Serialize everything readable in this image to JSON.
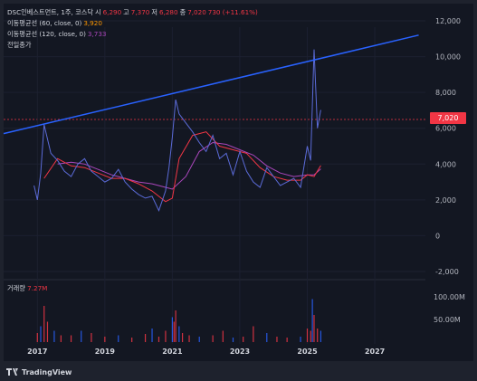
{
  "legend": {
    "title": "DSC인베스트먼트, 1주, 코스닥",
    "o_label": "시",
    "o_val": "6,290",
    "h_label": "고",
    "h_val": "7,370",
    "l_label": "저",
    "l_val": "6,280",
    "c_label": "종",
    "c_val": "7,020",
    "change": "730 (+11.61%)",
    "ma60_label": "이동평균선 (60, close, 0)",
    "ma60_val": "3,920",
    "ma120_label": "이동평균선 (120, close, 0)",
    "ma120_val": "3,733",
    "prev_close": "전일종가"
  },
  "volume": {
    "label": "거래량",
    "value": "7.27M"
  },
  "price_badge": "7,020",
  "footer": {
    "brand": "TradingView"
  },
  "colors": {
    "up": "#f23645",
    "down": "#2962ff",
    "ma60": "#f23645",
    "ma120": "#ab47bc",
    "trendline": "#2962ff"
  },
  "chart_data": {
    "type": "line",
    "y_ticks": [
      "12,000",
      "10,000",
      "8,000",
      "6,000",
      "4,000",
      "2,000",
      "0",
      "-2,000"
    ],
    "x_ticks": [
      "2017",
      "2019",
      "2021",
      "2023",
      "2025",
      "2027"
    ],
    "vol_ticks": [
      "100.00M",
      "50.00M"
    ],
    "ylim": [
      -2000,
      12000
    ],
    "last_price": 7020,
    "trendline": {
      "x": [
        2016.0,
        2028.3
      ],
      "y": [
        5700,
        11200
      ]
    },
    "price": {
      "x": [
        2016.9,
        2017.0,
        2017.1,
        2017.2,
        2017.4,
        2017.6,
        2017.8,
        2018.0,
        2018.2,
        2018.4,
        2018.6,
        2018.8,
        2019.0,
        2019.2,
        2019.4,
        2019.6,
        2019.8,
        2020.0,
        2020.2,
        2020.4,
        2020.6,
        2020.8,
        2020.9,
        2021.0,
        2021.1,
        2021.2,
        2021.4,
        2021.6,
        2021.8,
        2022.0,
        2022.2,
        2022.4,
        2022.6,
        2022.8,
        2023.0,
        2023.2,
        2023.4,
        2023.6,
        2023.8,
        2024.0,
        2024.2,
        2024.4,
        2024.6,
        2024.8,
        2025.0,
        2025.1,
        2025.15,
        2025.2,
        2025.3,
        2025.4
      ],
      "y": [
        2800,
        2000,
        3500,
        6200,
        4600,
        4200,
        3600,
        3300,
        4000,
        4300,
        3600,
        3300,
        3000,
        3200,
        3700,
        3000,
        2600,
        2300,
        2100,
        2200,
        1400,
        2500,
        3800,
        5500,
        7600,
        6800,
        6300,
        5800,
        5200,
        4700,
        5600,
        4300,
        4600,
        3400,
        4700,
        3600,
        3000,
        2700,
        3800,
        3300,
        2800,
        3000,
        3200,
        2700,
        5000,
        4200,
        7300,
        10400,
        6000,
        7020
      ]
    },
    "ma60": {
      "x": [
        2017.2,
        2017.6,
        2018.0,
        2018.4,
        2018.8,
        2019.2,
        2019.6,
        2020.0,
        2020.4,
        2020.8,
        2021.0,
        2021.2,
        2021.6,
        2022.0,
        2022.4,
        2022.8,
        2023.2,
        2023.6,
        2024.0,
        2024.4,
        2024.8,
        2025.0,
        2025.2,
        2025.4
      ],
      "y": [
        3200,
        4300,
        3900,
        3800,
        3500,
        3200,
        3200,
        2900,
        2500,
        1900,
        2100,
        4300,
        5600,
        5800,
        5000,
        4800,
        4600,
        3800,
        3300,
        3100,
        3100,
        3400,
        3300,
        3920
      ]
    },
    "ma120": {
      "x": [
        2017.6,
        2018.0,
        2018.4,
        2018.8,
        2019.2,
        2019.6,
        2020.0,
        2020.4,
        2020.8,
        2021.0,
        2021.4,
        2021.8,
        2022.2,
        2022.6,
        2023.0,
        2023.4,
        2023.8,
        2024.2,
        2024.6,
        2025.0,
        2025.2,
        2025.4
      ],
      "y": [
        4000,
        4100,
        4000,
        3700,
        3400,
        3200,
        3000,
        2900,
        2700,
        2600,
        3300,
        4700,
        5200,
        5100,
        4800,
        4500,
        3900,
        3500,
        3300,
        3400,
        3400,
        3733
      ]
    },
    "volume": {
      "x": [
        2017.0,
        2017.1,
        2017.2,
        2017.3,
        2017.5,
        2017.7,
        2018.0,
        2018.3,
        2018.6,
        2019.0,
        2019.4,
        2019.8,
        2020.2,
        2020.4,
        2020.6,
        2020.8,
        2021.0,
        2021.05,
        2021.1,
        2021.2,
        2021.3,
        2021.5,
        2021.8,
        2022.2,
        2022.5,
        2022.8,
        2023.1,
        2023.4,
        2023.8,
        2024.1,
        2024.4,
        2024.8,
        2025.0,
        2025.1,
        2025.15,
        2025.2,
        2025.3,
        2025.4
      ],
      "y": [
        20,
        35,
        80,
        45,
        25,
        15,
        15,
        25,
        20,
        12,
        15,
        10,
        18,
        30,
        12,
        25,
        55,
        45,
        70,
        35,
        20,
        15,
        12,
        15,
        25,
        10,
        12,
        35,
        20,
        12,
        10,
        12,
        30,
        25,
        95,
        60,
        30,
        25
      ]
    }
  }
}
